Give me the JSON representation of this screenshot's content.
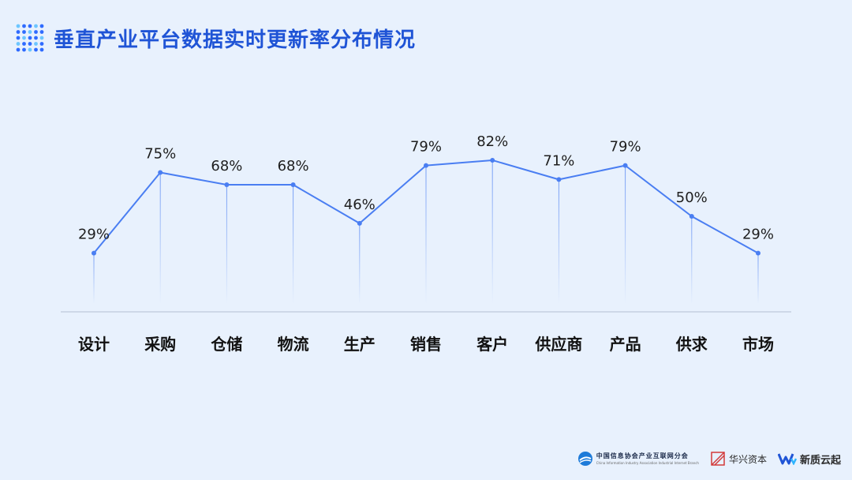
{
  "header": {
    "title": "垂直产业平台数据实时更新率分布情况",
    "icon": "dot-grid-icon"
  },
  "colors": {
    "background": "#e8f1fd",
    "title": "#1f54d6",
    "line": "#4a7ef2",
    "axis": "#b4c0d2",
    "icon_blue": "#2f6bff",
    "icon_light": "#6cc6ff"
  },
  "chart_data": {
    "type": "line",
    "categories": [
      "设计",
      "采购",
      "仓储",
      "物流",
      "生产",
      "销售",
      "客户",
      "供应商",
      "产品",
      "供求",
      "市场"
    ],
    "values": [
      29,
      75,
      68,
      68,
      46,
      79,
      82,
      71,
      79,
      50,
      29
    ],
    "labels": [
      "29%",
      "75%",
      "68%",
      "68%",
      "46%",
      "79%",
      "82%",
      "71%",
      "79%",
      "50%",
      "29%"
    ],
    "unit": "%",
    "title": "",
    "xlabel": "",
    "ylabel": "",
    "ylim": [
      0,
      100
    ],
    "grid": false,
    "legend": "none"
  },
  "footer": {
    "logo1_cn": "中国信息协会产业互联网分会",
    "logo1_en": "China Information Industry Association Industrial Internet Branch",
    "logo2": "华兴资本",
    "logo3": "新质云起"
  }
}
